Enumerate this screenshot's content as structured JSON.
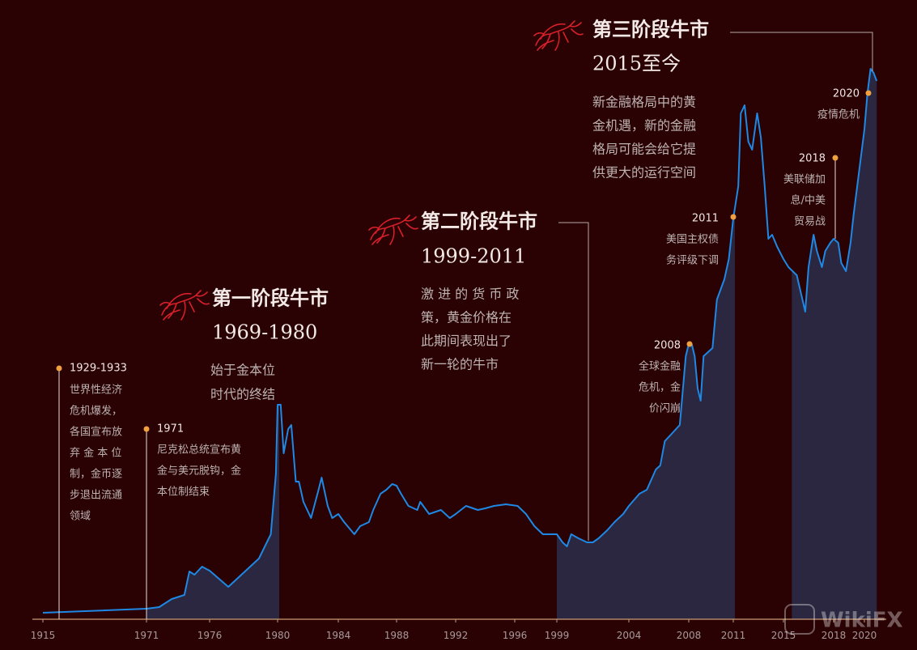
{
  "chart_data": {
    "type": "line",
    "xlim": [
      1915,
      2021
    ],
    "ylim": [
      0,
      700
    ],
    "xticks": [
      1915,
      1971,
      1976,
      1980,
      1984,
      1988,
      1992,
      1996,
      1999,
      2004,
      2008,
      2011,
      2015,
      2018,
      2020
    ],
    "periods": [
      [
        1971,
        1980
      ],
      [
        1999,
        2011
      ],
      [
        2015.5,
        2020.8
      ]
    ],
    "series": [
      {
        "color": "#1e88e5",
        "x": [
          1915,
          1971,
          1972.0,
          1973.0,
          1974.0,
          1974.4,
          1974.8,
          1975.4,
          1976.0,
          1977.1,
          1978.9,
          1979.6,
          1979.9,
          1980.0,
          1980.2,
          1980.4,
          1980.7,
          1980.9,
          1981.2,
          1981.4,
          1981.7,
          1982.2,
          1982.7,
          1982.9,
          1983.3,
          1983.6,
          1984.0,
          1984.4,
          1985.1,
          1985.5,
          1986.1,
          1986.4,
          1986.9,
          1987.3,
          1987.7,
          1988.0,
          1988.3,
          1988.8,
          1989.4,
          1989.6,
          1990.2,
          1991.0,
          1991.6,
          1992.0,
          1992.7,
          1993.5,
          1994.0,
          1994.6,
          1995.4,
          1996.2,
          1996.8,
          1997.4,
          1998.0,
          1998.5,
          1999.0,
          1999.4,
          1999.7,
          2000.0,
          2000.5,
          2001.1,
          2001.5,
          2001.9,
          2002.5,
          2003.0,
          2003.6,
          2004.0,
          2004.7,
          2005.2,
          2005.8,
          2006.1,
          2006.4,
          2006.9,
          2007.4,
          2007.8,
          2008.0,
          2008.2,
          2008.4,
          2008.6,
          2008.8,
          2009.0,
          2009.6,
          2009.9,
          2010.4,
          2010.7,
          2011.0,
          2011.4,
          2011.6,
          2011.9,
          2012.2,
          2012.5,
          2012.9,
          2013.2,
          2013.5,
          2013.8,
          2014.1,
          2014.5,
          2015.0,
          2015.3,
          2015.8,
          2016.3,
          2016.5,
          2016.8,
          2017.0,
          2017.3,
          2017.5,
          2017.8,
          2018.0,
          2018.3,
          2018.5,
          2018.8,
          2019.1,
          2019.3,
          2019.6,
          2020.0,
          2020.2,
          2020.4,
          2020.6,
          2020.8
        ],
        "values": [
          8,
          13,
          15,
          25,
          30,
          59,
          55,
          65,
          60,
          40,
          75,
          105,
          180,
          265,
          265,
          205,
          235,
          240,
          170,
          170,
          145,
          125,
          160,
          175,
          140,
          125,
          130,
          120,
          105,
          115,
          120,
          135,
          155,
          160,
          167,
          165,
          155,
          140,
          135,
          145,
          130,
          135,
          125,
          130,
          140,
          135,
          137,
          140,
          142,
          140,
          130,
          115,
          105,
          105,
          105,
          95,
          90,
          105,
          100,
          95,
          95,
          100,
          110,
          120,
          130,
          140,
          155,
          160,
          185,
          190,
          220,
          230,
          240,
          325,
          340,
          340,
          325,
          285,
          270,
          325,
          335,
          395,
          420,
          445,
          495,
          535,
          625,
          635,
          590,
          580,
          625,
          595,
          535,
          470,
          475,
          460,
          445,
          435,
          425,
          380,
          435,
          475,
          455,
          435,
          455,
          465,
          470,
          465,
          440,
          430,
          465,
          500,
          545,
          605,
          650,
          680,
          675,
          665
        ]
      }
    ],
    "stages": [
      {
        "title": "第一阶段牛市",
        "period": "1969-1980",
        "lines": [
          "始于金本位",
          "时代的终结"
        ]
      },
      {
        "title": "第二阶段牛市",
        "period": "1999-2011",
        "lines": [
          "激 进 的 货 币 政",
          "策，黄金价格在",
          "此期间表现出了",
          "新一轮的牛市"
        ]
      },
      {
        "title": "第三阶段牛市",
        "period": "2015至今",
        "lines": [
          "新金融格局中的黄",
          "金机遇，新的金融",
          "格局可能会给它提",
          "供更大的运行空间"
        ]
      }
    ],
    "events": [
      {
        "label": "1929-1933",
        "lines": [
          "世界性经济",
          "危机爆发，",
          "各国宣布放",
          "弃 金 本 位",
          "制，金币逐",
          "步退出流通",
          "领域"
        ]
      },
      {
        "label": "1971",
        "lines": [
          "尼克松总统宣布黄",
          "金与美元脱钩，金",
          "本位制结束"
        ]
      },
      {
        "label": "2008",
        "lines": [
          "全球金融",
          "危机，金",
          "价闪崩"
        ]
      },
      {
        "label": "2011",
        "lines": [
          "美国主权债",
          "务评级下调"
        ]
      },
      {
        "label": "2018",
        "lines": [
          "美联储加",
          "息/中美",
          "贸易战"
        ]
      },
      {
        "label": "2020",
        "lines": [
          "疫情危机"
        ]
      }
    ],
    "watermark": "WikiFX"
  }
}
